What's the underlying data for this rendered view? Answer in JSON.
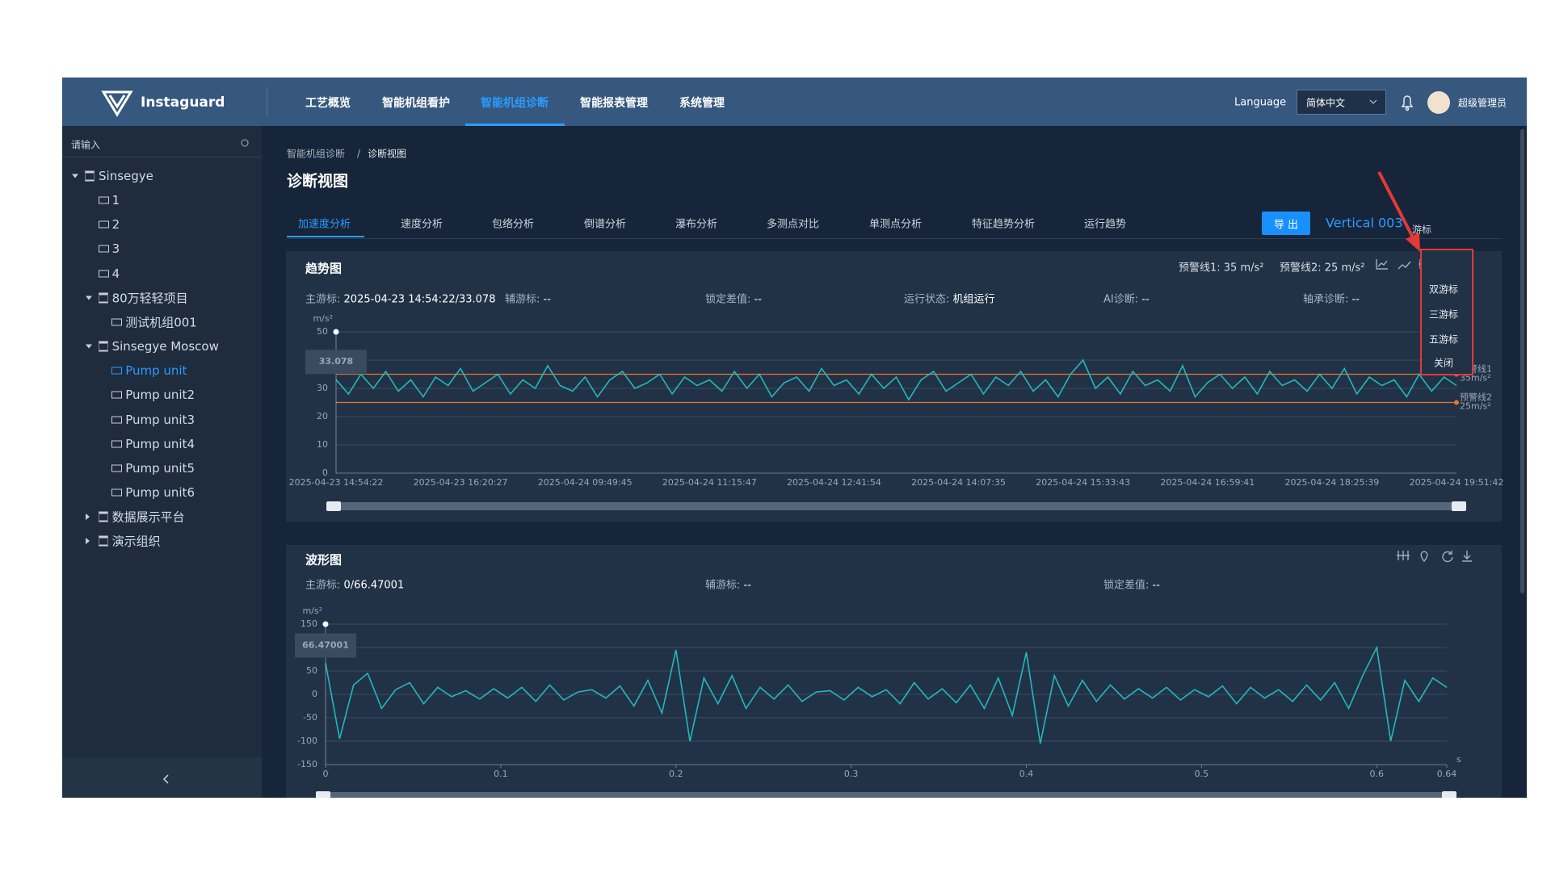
{
  "header": {
    "brand": "Instaguard",
    "nav": [
      "工艺概览",
      "智能机组看护",
      "智能机组诊断",
      "智能报表管理",
      "系统管理"
    ],
    "active_nav": 2,
    "language_label": "Language",
    "language": "简体中文",
    "user": "超级管理员"
  },
  "sidebar": {
    "search": "请输入",
    "tree": [
      {
        "label": "Sinsegye",
        "depth": 0,
        "kind": "org",
        "expanded": true
      },
      {
        "label": "1",
        "depth": 1,
        "kind": "unit"
      },
      {
        "label": "2",
        "depth": 1,
        "kind": "unit"
      },
      {
        "label": "3",
        "depth": 1,
        "kind": "unit"
      },
      {
        "label": "4",
        "depth": 1,
        "kind": "unit"
      },
      {
        "label": "80万轻轻项目",
        "depth": 1,
        "kind": "org",
        "expanded": true
      },
      {
        "label": "测试机组001",
        "depth": 2,
        "kind": "unit"
      },
      {
        "label": "Sinsegye Moscow",
        "depth": 1,
        "kind": "org",
        "expanded": true
      },
      {
        "label": "Pump unit",
        "depth": 2,
        "kind": "unit",
        "active": true
      },
      {
        "label": "Pump unit2",
        "depth": 2,
        "kind": "unit"
      },
      {
        "label": "Pump unit3",
        "depth": 2,
        "kind": "unit"
      },
      {
        "label": "Pump unit4",
        "depth": 2,
        "kind": "unit"
      },
      {
        "label": "Pump unit5",
        "depth": 2,
        "kind": "unit"
      },
      {
        "label": "Pump unit6",
        "depth": 2,
        "kind": "unit"
      },
      {
        "label": "数据展示平台",
        "depth": 1,
        "kind": "org",
        "expanded": false
      },
      {
        "label": "演示组织",
        "depth": 1,
        "kind": "org",
        "expanded": false
      }
    ]
  },
  "content": {
    "breadcrumb": [
      "智能机组诊断",
      "诊断视图"
    ],
    "breadcrumb_separator": "/",
    "title": "诊断视图",
    "tabs": [
      "加速度分析",
      "速度分析",
      "包络分析",
      "倒谱分析",
      "瀑布分析",
      "多测点对比",
      "单测点分析",
      "特征趋势分析",
      "运行趋势"
    ],
    "active_tab": 0,
    "export": "导 出",
    "channel": "Vertical 003",
    "cursor_toggle": "游标",
    "cursor_menu": [
      "双游标",
      "三游标",
      "五游标",
      "关闭"
    ]
  },
  "trend_panel": {
    "title": "趋势图",
    "alarm_lines": [
      "预警线1: 35 m/s²",
      "预警线2: 25 m/s²"
    ],
    "info": [
      {
        "label": "主游标:",
        "value": "2025-04-23 14:54:22/33.078"
      },
      {
        "label": "辅游标:",
        "value": "--"
      },
      {
        "label": "锁定差值:",
        "value": "--"
      },
      {
        "label": "运行状态:",
        "value": "机组运行"
      },
      {
        "label": "AI诊断:",
        "value": "--"
      },
      {
        "label": "轴承诊断:",
        "value": "--"
      }
    ]
  },
  "wave_panel": {
    "title": "波形图",
    "info": [
      {
        "label": "主游标:",
        "value": "0/66.47001"
      },
      {
        "label": "辅游标:",
        "value": "--"
      },
      {
        "label": "锁定差值:",
        "value": "--"
      }
    ]
  },
  "chart_data": [
    {
      "type": "line",
      "color": "#22b8bd",
      "y_unit": "m/s²",
      "ylim": [
        0,
        50
      ],
      "yticks": [
        0,
        10,
        20,
        30,
        40,
        50
      ],
      "grid": true,
      "cursor_label": "33.078",
      "thresholds": [
        {
          "name": "预警线1",
          "value": 35,
          "label": "35m/s²",
          "color": "#e8742c"
        },
        {
          "name": "预警线2",
          "value": 25,
          "label": "25m/s²",
          "color": "#e8742c"
        }
      ],
      "categories": [
        "2025-04-23 14:54:22",
        null,
        null,
        null,
        null,
        null,
        null,
        null,
        null,
        null,
        "2025-04-23 16:20:27",
        null,
        null,
        null,
        null,
        null,
        null,
        null,
        null,
        null,
        "2025-04-24 09:49:45",
        null,
        null,
        null,
        null,
        null,
        null,
        null,
        null,
        null,
        "2025-04-24 11:15:47",
        null,
        null,
        null,
        null,
        null,
        null,
        null,
        null,
        null,
        "2025-04-24 12:41:54",
        null,
        null,
        null,
        null,
        null,
        null,
        null,
        null,
        null,
        "2025-04-24 14:07:35",
        null,
        null,
        null,
        null,
        null,
        null,
        null,
        null,
        null,
        "2025-04-24 15:33:43",
        null,
        null,
        null,
        null,
        null,
        null,
        null,
        null,
        null,
        "2025-04-24 16:59:41",
        null,
        null,
        null,
        null,
        null,
        null,
        null,
        null,
        null,
        "2025-04-24 18:25:39",
        null,
        null,
        null,
        null,
        null,
        null,
        null,
        null,
        null,
        "2025-04-24 19:51:42"
      ],
      "values": [
        33.078,
        28,
        35,
        30,
        36,
        29,
        33,
        27,
        34,
        31,
        37,
        29,
        32,
        35,
        28,
        33,
        30,
        38,
        31,
        29,
        34,
        27,
        33,
        36,
        30,
        32,
        35,
        28,
        34,
        31,
        33,
        29,
        36,
        30,
        35,
        27,
        32,
        34,
        29,
        37,
        31,
        33,
        28,
        35,
        30,
        34,
        26,
        33,
        36,
        29,
        32,
        35,
        28,
        34,
        31,
        36,
        29,
        33,
        27,
        35,
        40,
        30,
        34,
        28,
        36,
        31,
        33,
        29,
        38,
        27,
        32,
        35,
        30,
        34,
        28,
        36,
        31,
        33,
        29,
        35,
        30,
        37,
        28,
        34,
        31,
        33,
        27,
        35,
        29,
        34,
        31
      ]
    },
    {
      "type": "line",
      "color": "#22b8bd",
      "y_unit": "m/s²",
      "x_unit": "s",
      "ylim": [
        -150,
        150
      ],
      "yticks": [
        -150,
        -100,
        -50,
        0,
        50,
        100,
        150
      ],
      "xlim": [
        0,
        0.64
      ],
      "xticks": [
        0,
        0.1,
        0.2,
        0.3,
        0.4,
        0.5,
        0.6,
        0.64
      ],
      "grid": true,
      "cursor_label": "66.47001",
      "x": [
        0,
        0.008,
        0.016,
        0.024,
        0.032,
        0.04,
        0.048,
        0.056,
        0.064,
        0.072,
        0.08,
        0.088,
        0.096,
        0.104,
        0.112,
        0.12,
        0.128,
        0.136,
        0.144,
        0.152,
        0.16,
        0.168,
        0.176,
        0.184,
        0.192,
        0.2,
        0.208,
        0.216,
        0.224,
        0.232,
        0.24,
        0.248,
        0.256,
        0.264,
        0.272,
        0.28,
        0.288,
        0.296,
        0.304,
        0.312,
        0.32,
        0.328,
        0.336,
        0.344,
        0.352,
        0.36,
        0.368,
        0.376,
        0.384,
        0.392,
        0.4,
        0.408,
        0.416,
        0.424,
        0.432,
        0.44,
        0.448,
        0.456,
        0.464,
        0.472,
        0.48,
        0.488,
        0.496,
        0.504,
        0.512,
        0.52,
        0.528,
        0.536,
        0.544,
        0.552,
        0.56,
        0.568,
        0.576,
        0.584,
        0.592,
        0.6,
        0.608,
        0.616,
        0.624,
        0.632,
        0.64
      ],
      "values": [
        66.47001,
        -95,
        20,
        45,
        -30,
        10,
        25,
        -20,
        15,
        -5,
        8,
        -10,
        12,
        -8,
        15,
        -15,
        20,
        -12,
        5,
        10,
        -8,
        18,
        -25,
        30,
        -40,
        95,
        -100,
        35,
        -20,
        40,
        -30,
        15,
        -10,
        20,
        -15,
        5,
        8,
        -12,
        15,
        -5,
        10,
        -20,
        25,
        -10,
        12,
        -18,
        20,
        -30,
        35,
        -45,
        90,
        -105,
        40,
        -25,
        30,
        -15,
        20,
        -10,
        12,
        -8,
        15,
        -12,
        10,
        -5,
        18,
        -20,
        15,
        -8,
        10,
        -15,
        20,
        -12,
        25,
        -30,
        40,
        100,
        -100,
        30,
        -15,
        35,
        15
      ]
    }
  ]
}
